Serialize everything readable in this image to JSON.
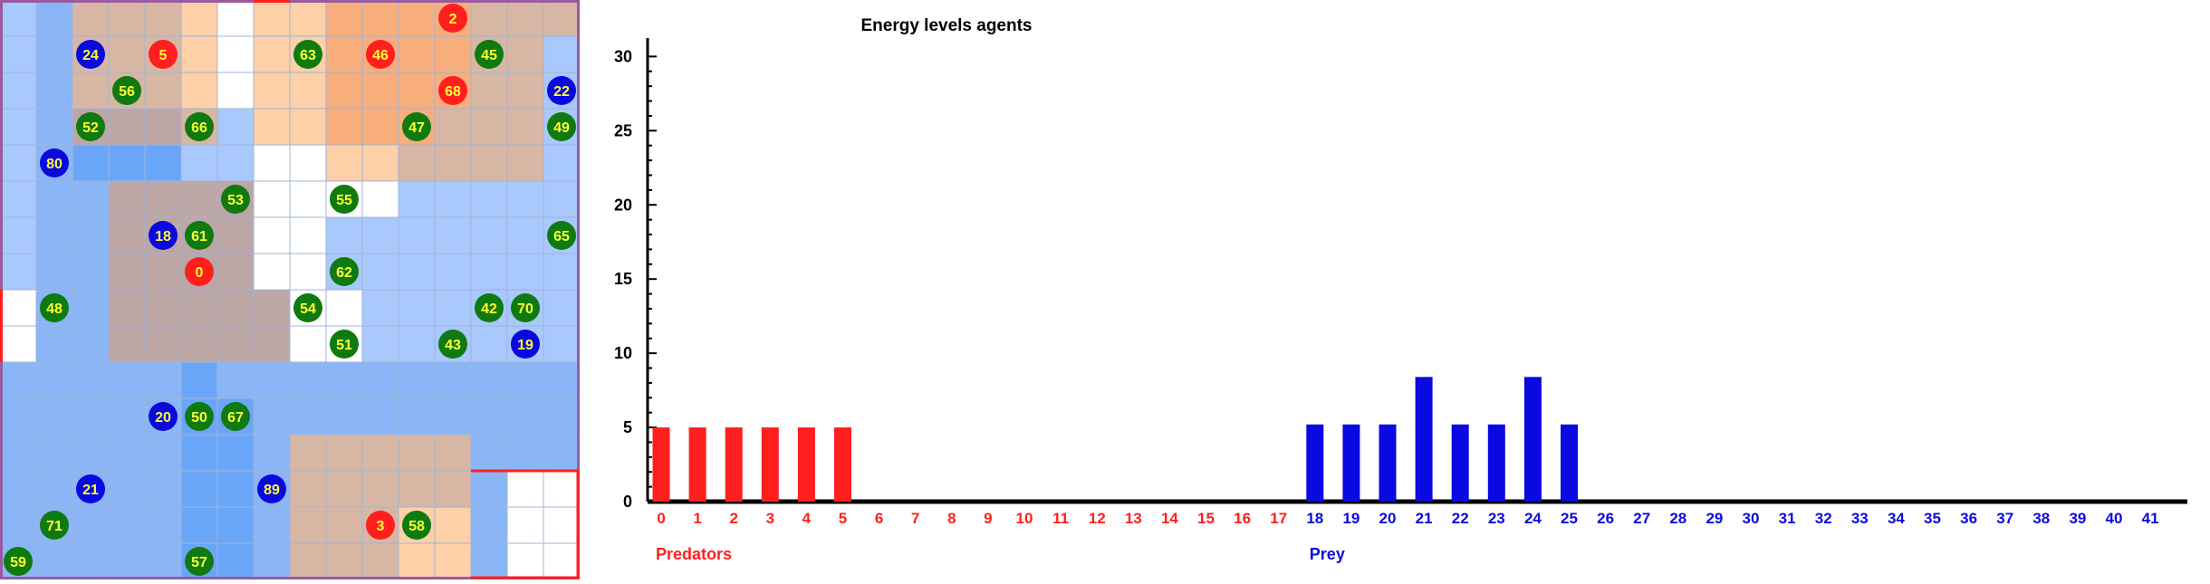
{
  "colors": {
    "predator": "#ff1f1f",
    "prey": "#0a0ae0",
    "plant": "#0f7a0f",
    "agent_label": "#ffff33",
    "cell_white": "#ffffff",
    "cell_light_blue": "#a9c8fb",
    "cell_mid_blue": "#8ab6f7",
    "cell_blue": "#6aa6f7",
    "cell_light_orange": "#fdd0a8",
    "cell_orange": "#f7ae7c",
    "cell_tan": "#d7b7a4",
    "cell_mauve": "#bda6a6",
    "grid_border": "#9a5aa0",
    "grid_highlight": "#ff1f1f",
    "axis": "#000000"
  },
  "grid": {
    "cols": 16,
    "rows": 16,
    "cell_rows": [
      "BBTTTOWOOPPPPTTT",
      "BBTTTOWOOPPPPTTB",
      "BBTTTOWOOPPPPTTB",
      "BBMMMTBOOPPPTTTB",
      "BBCCCBBWWOOTTTTB",
      "BBBMMMMWWWWBBBBB",
      "BBBMMMMWWBBBBBBB",
      "BBBMMMMWWBBBBBBB",
      "WBBMMMMMWWBBBBBB",
      "WBBMMMMMWWBBBBBB",
      "BBBBBCBBBBBBBBBB",
      "BBBBBCCBBBBBBBBB",
      "BBBBBCCBTTTTTBBB",
      "BBBBBCCBTTTTTBWW",
      "BBBBBCCBTTTOOBWW",
      "BBBBBCCBTTTOOBWW"
    ],
    "agents": [
      {
        "id": "2",
        "kind": "predator",
        "col": 12,
        "row": 0
      },
      {
        "id": "24",
        "kind": "prey",
        "col": 2,
        "row": 1
      },
      {
        "id": "5",
        "kind": "predator",
        "col": 4,
        "row": 1
      },
      {
        "id": "63",
        "kind": "plant",
        "col": 8,
        "row": 1
      },
      {
        "id": "46",
        "kind": "predator",
        "col": 10,
        "row": 1
      },
      {
        "id": "45",
        "kind": "plant",
        "col": 13,
        "row": 1
      },
      {
        "id": "56",
        "kind": "plant",
        "col": 3,
        "row": 2
      },
      {
        "id": "68",
        "kind": "predator",
        "col": 12,
        "row": 2
      },
      {
        "id": "22",
        "kind": "prey",
        "col": 15,
        "row": 2
      },
      {
        "id": "52",
        "kind": "plant",
        "col": 2,
        "row": 3
      },
      {
        "id": "66",
        "kind": "plant",
        "col": 5,
        "row": 3
      },
      {
        "id": "47",
        "kind": "plant",
        "col": 11,
        "row": 3
      },
      {
        "id": "49",
        "kind": "plant",
        "col": 15,
        "row": 3
      },
      {
        "id": "80",
        "kind": "prey",
        "col": 1,
        "row": 4
      },
      {
        "id": "53",
        "kind": "plant",
        "col": 6,
        "row": 5
      },
      {
        "id": "55",
        "kind": "plant",
        "col": 9,
        "row": 5
      },
      {
        "id": "18",
        "kind": "prey",
        "col": 4,
        "row": 6
      },
      {
        "id": "61",
        "kind": "plant",
        "col": 5,
        "row": 6
      },
      {
        "id": "65",
        "kind": "plant",
        "col": 15,
        "row": 6
      },
      {
        "id": "0",
        "kind": "predator",
        "col": 5,
        "row": 7
      },
      {
        "id": "62",
        "kind": "plant",
        "col": 9,
        "row": 7
      },
      {
        "id": "48",
        "kind": "plant",
        "col": 1,
        "row": 8
      },
      {
        "id": "54",
        "kind": "plant",
        "col": 8,
        "row": 8
      },
      {
        "id": "42",
        "kind": "plant",
        "col": 13,
        "row": 8
      },
      {
        "id": "70",
        "kind": "plant",
        "col": 14,
        "row": 8
      },
      {
        "id": "51",
        "kind": "plant",
        "col": 9,
        "row": 9
      },
      {
        "id": "43",
        "kind": "plant",
        "col": 12,
        "row": 9
      },
      {
        "id": "19",
        "kind": "prey",
        "col": 14,
        "row": 9
      },
      {
        "id": "20",
        "kind": "prey",
        "col": 4,
        "row": 11
      },
      {
        "id": "50",
        "kind": "plant",
        "col": 5,
        "row": 11
      },
      {
        "id": "67",
        "kind": "plant",
        "col": 6,
        "row": 11
      },
      {
        "id": "21",
        "kind": "prey",
        "col": 2,
        "row": 13
      },
      {
        "id": "89",
        "kind": "prey",
        "col": 7,
        "row": 13
      },
      {
        "id": "71",
        "kind": "plant",
        "col": 1,
        "row": 14
      },
      {
        "id": "3",
        "kind": "predator",
        "col": 10,
        "row": 14
      },
      {
        "id": "58",
        "kind": "plant",
        "col": 11,
        "row": 14
      },
      {
        "id": "59",
        "kind": "plant",
        "col": 0,
        "row": 15
      },
      {
        "id": "57",
        "kind": "plant",
        "col": 5,
        "row": 15
      }
    ]
  },
  "chart_data": {
    "type": "bar",
    "title": "Energy levels agents",
    "xlabel": "",
    "ylabel": "",
    "ylim": [
      0,
      31
    ],
    "yticks": [
      0,
      5,
      10,
      15,
      20,
      25,
      30
    ],
    "categories": [
      "0",
      "1",
      "2",
      "3",
      "4",
      "5",
      "6",
      "7",
      "8",
      "9",
      "10",
      "11",
      "12",
      "13",
      "14",
      "15",
      "16",
      "17",
      "18",
      "19",
      "20",
      "21",
      "22",
      "23",
      "24",
      "25",
      "26",
      "27",
      "28",
      "29",
      "30",
      "31",
      "32",
      "33",
      "34",
      "35",
      "36",
      "37",
      "38",
      "39",
      "40",
      "41"
    ],
    "category_colors": [
      "predator",
      "predator",
      "predator",
      "predator",
      "predator",
      "predator",
      "predator",
      "predator",
      "predator",
      "predator",
      "predator",
      "predator",
      "predator",
      "predator",
      "predator",
      "predator",
      "predator",
      "predator",
      "prey",
      "prey",
      "prey",
      "prey",
      "prey",
      "prey",
      "prey",
      "prey",
      "prey",
      "prey",
      "prey",
      "prey",
      "prey",
      "prey",
      "prey",
      "prey",
      "prey",
      "prey",
      "prey",
      "prey",
      "prey",
      "prey",
      "prey",
      "prey"
    ],
    "series": [
      {
        "name": "Predators",
        "values": [
          5,
          5,
          5,
          5,
          5,
          5,
          0,
          0,
          0,
          0,
          0,
          0,
          0,
          0,
          0,
          0,
          0,
          0,
          0,
          0,
          0,
          0,
          0,
          0,
          0,
          0,
          0,
          0,
          0,
          0,
          0,
          0,
          0,
          0,
          0,
          0,
          0,
          0,
          0,
          0,
          0,
          0
        ]
      },
      {
        "name": "Prey",
        "values": [
          0,
          0,
          0,
          0,
          0,
          0,
          0,
          0,
          0,
          0,
          0,
          0,
          0,
          0,
          0,
          0,
          0,
          0,
          5.2,
          5.2,
          5.2,
          8.4,
          5.2,
          5.2,
          8.4,
          5.2,
          0,
          0,
          0,
          0,
          0,
          0,
          0,
          0,
          0,
          0,
          0,
          0,
          0,
          0,
          0,
          0
        ]
      }
    ],
    "group_labels": [
      {
        "text": "Predators",
        "start_category": 0,
        "color": "predator"
      },
      {
        "text": "Prey",
        "start_category": 18,
        "color": "prey"
      }
    ],
    "grid": false,
    "legend": "none"
  }
}
